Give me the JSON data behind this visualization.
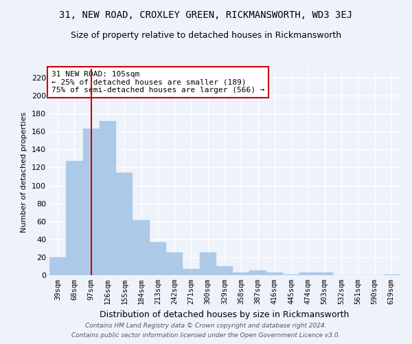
{
  "title": "31, NEW ROAD, CROXLEY GREEN, RICKMANSWORTH, WD3 3EJ",
  "subtitle": "Size of property relative to detached houses in Rickmansworth",
  "xlabel": "Distribution of detached houses by size in Rickmansworth",
  "ylabel": "Number of detached properties",
  "categories": [
    "39sqm",
    "68sqm",
    "97sqm",
    "126sqm",
    "155sqm",
    "184sqm",
    "213sqm",
    "242sqm",
    "271sqm",
    "300sqm",
    "329sqm",
    "358sqm",
    "387sqm",
    "416sqm",
    "445sqm",
    "474sqm",
    "503sqm",
    "532sqm",
    "561sqm",
    "590sqm",
    "619sqm"
  ],
  "values": [
    20,
    127,
    163,
    172,
    114,
    61,
    37,
    25,
    7,
    25,
    10,
    3,
    5,
    3,
    1,
    3,
    3,
    0,
    0,
    0,
    1
  ],
  "bar_color": "#adc9e8",
  "bar_edge_color": "#adc9e8",
  "background_color": "#eef2fb",
  "grid_color": "#ffffff",
  "annotation_text": "31 NEW ROAD: 105sqm\n← 25% of detached houses are smaller (189)\n75% of semi-detached houses are larger (566) →",
  "annotation_box_color": "#ffffff",
  "annotation_border_color": "#cc0000",
  "vline_color": "#cc0000",
  "vline_idx": 2,
  "ylim": [
    0,
    230
  ],
  "yticks": [
    0,
    20,
    40,
    60,
    80,
    100,
    120,
    140,
    160,
    180,
    200,
    220
  ],
  "footnote1": "Contains HM Land Registry data © Crown copyright and database right 2024.",
  "footnote2": "Contains public sector information licensed under the Open Government Licence v3.0.",
  "title_fontsize": 10,
  "subtitle_fontsize": 9,
  "ylabel_fontsize": 8,
  "xlabel_fontsize": 9,
  "annot_fontsize": 8,
  "footnote_fontsize": 6.5,
  "tick_fontsize": 7.5,
  "ytick_fontsize": 8
}
